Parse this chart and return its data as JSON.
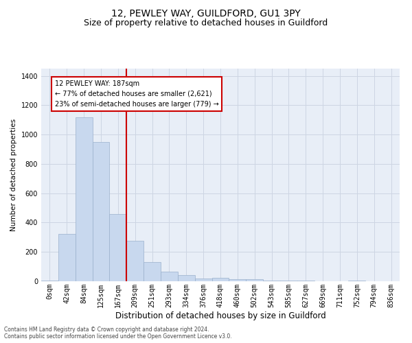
{
  "title": "12, PEWLEY WAY, GUILDFORD, GU1 3PY",
  "subtitle": "Size of property relative to detached houses in Guildford",
  "xlabel": "Distribution of detached houses by size in Guildford",
  "ylabel": "Number of detached properties",
  "footer_line1": "Contains HM Land Registry data © Crown copyright and database right 2024.",
  "footer_line2": "Contains public sector information licensed under the Open Government Licence v3.0.",
  "bar_labels": [
    "0sqm",
    "42sqm",
    "84sqm",
    "125sqm",
    "167sqm",
    "209sqm",
    "251sqm",
    "293sqm",
    "334sqm",
    "376sqm",
    "418sqm",
    "460sqm",
    "502sqm",
    "543sqm",
    "585sqm",
    "627sqm",
    "669sqm",
    "711sqm",
    "752sqm",
    "794sqm",
    "836sqm"
  ],
  "bar_values": [
    5,
    325,
    1120,
    950,
    460,
    275,
    130,
    65,
    40,
    20,
    22,
    15,
    12,
    5,
    5,
    3,
    0,
    0,
    5,
    0,
    0
  ],
  "bar_color": "#c8d8ee",
  "bar_edge_color": "#9ab0cc",
  "vline_x": 4.5,
  "vline_color": "#cc0000",
  "annotation_line1": "12 PEWLEY WAY: 187sqm",
  "annotation_line2": "← 77% of detached houses are smaller (2,621)",
  "annotation_line3": "23% of semi-detached houses are larger (779) →",
  "annotation_box_facecolor": "#ffffff",
  "annotation_box_edgecolor": "#cc0000",
  "ylim": [
    0,
    1450
  ],
  "yticks": [
    0,
    200,
    400,
    600,
    800,
    1000,
    1200,
    1400
  ],
  "grid_color": "#cdd5e3",
  "bg_color": "#e8eef7",
  "title_fontsize": 10,
  "subtitle_fontsize": 9,
  "xlabel_fontsize": 8.5,
  "ylabel_fontsize": 7.5,
  "tick_fontsize": 7,
  "footer_fontsize": 5.5,
  "annotation_fontsize": 7
}
